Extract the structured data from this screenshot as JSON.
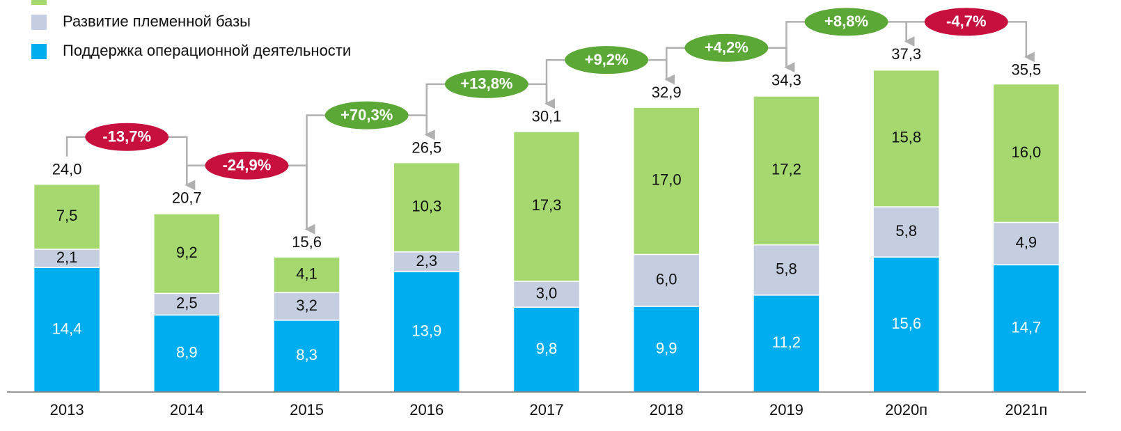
{
  "chart_data": {
    "type": "bar",
    "stacked": true,
    "categories": [
      "2013",
      "2014",
      "2015",
      "2016",
      "2017",
      "2018",
      "2019",
      "2020п",
      "2021п"
    ],
    "series": [
      {
        "name": "Поддержка операционной деятельности",
        "color": "#00aeef",
        "values": [
          14.4,
          8.9,
          8.3,
          13.9,
          9.8,
          9.9,
          11.2,
          15.6,
          14.7
        ],
        "value_labels": [
          "14,4",
          "8,9",
          "8,3",
          "13,9",
          "9,8",
          "9,9",
          "11,2",
          "15,6",
          "14,7"
        ]
      },
      {
        "name": "Развитие племенной базы",
        "color": "#c5cde0",
        "values": [
          2.1,
          2.5,
          3.2,
          2.3,
          3.0,
          6.0,
          5.8,
          5.8,
          4.9
        ],
        "value_labels": [
          "2,1",
          "2,5",
          "3,2",
          "2,3",
          "3,0",
          "6,0",
          "5,8",
          "5,8",
          "4,9"
        ]
      },
      {
        "color": "#a5d86e",
        "values": [
          7.5,
          9.2,
          4.1,
          10.3,
          17.3,
          17.0,
          17.2,
          15.8,
          16.0
        ],
        "value_labels": [
          "7,5",
          "9,2",
          "4,1",
          "10,3",
          "17,3",
          "17,0",
          "17,2",
          "15,8",
          "16,0"
        ]
      }
    ],
    "totals": [
      24.0,
      20.7,
      15.6,
      26.5,
      30.1,
      32.9,
      34.3,
      37.3,
      35.5
    ],
    "total_labels": [
      "24,0",
      "20,7",
      "15,6",
      "26,5",
      "30,1",
      "32,9",
      "34,3",
      "37,3",
      "35,5"
    ],
    "changes": [
      {
        "value": -13.7,
        "label": "-13,7%"
      },
      {
        "value": -24.9,
        "label": "-24,9%"
      },
      {
        "value": 70.3,
        "label": "+70,3%"
      },
      {
        "value": 13.8,
        "label": "+13,8%"
      },
      {
        "value": 9.2,
        "label": "+9,2%"
      },
      {
        "value": 4.2,
        "label": "+4,2%"
      },
      {
        "value": 8.8,
        "label": "+8,8%"
      },
      {
        "value": -4.7,
        "label": "-4,7%"
      }
    ],
    "positive_color": "#5ba836",
    "negative_color": "#c8103e",
    "ylim": [
      0,
      45.3
    ]
  }
}
